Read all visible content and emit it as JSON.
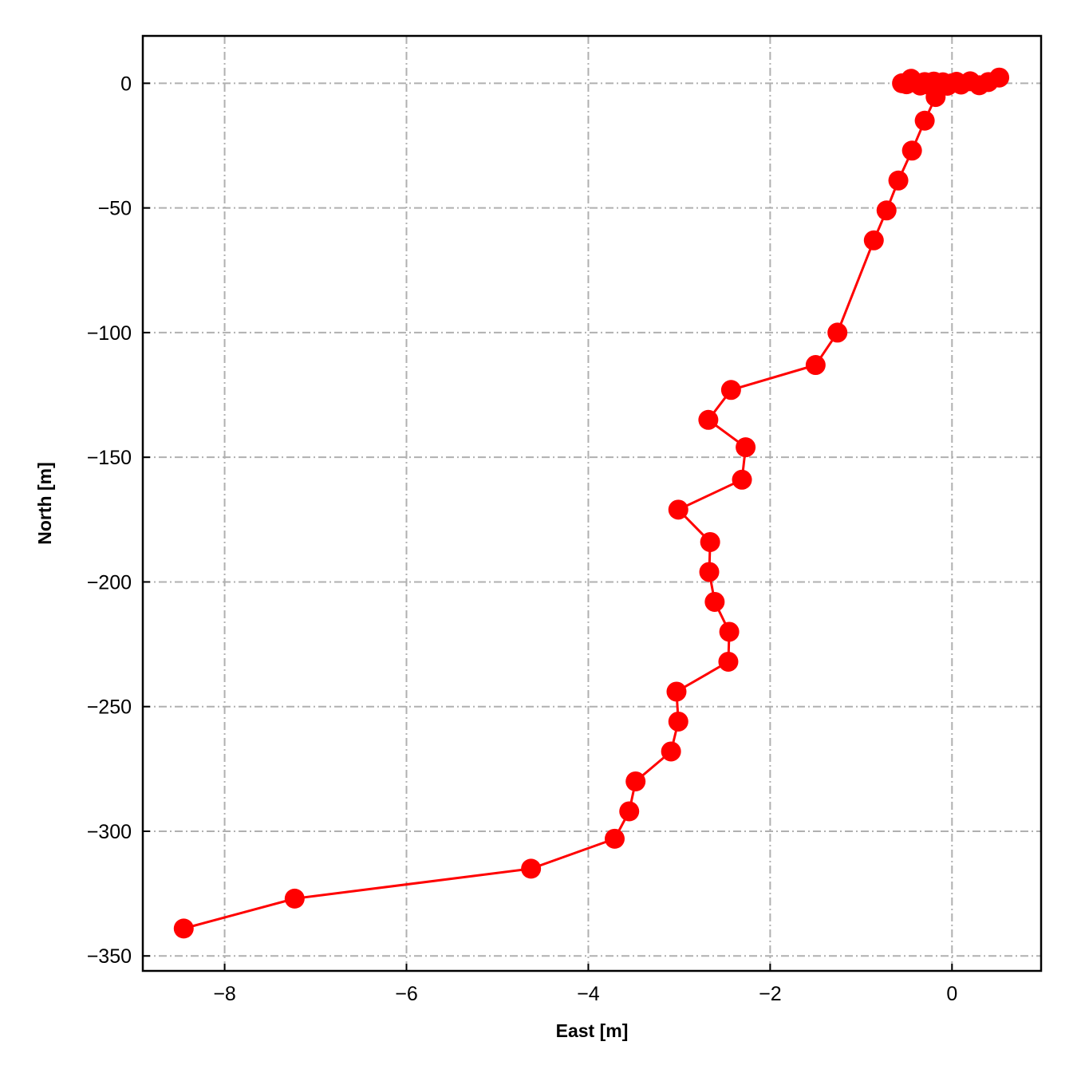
{
  "chart_data": {
    "type": "line",
    "xlabel": "East [m]",
    "ylabel": "North [m]",
    "xlim": [
      -8.9,
      0.98
    ],
    "ylim": [
      -356,
      19
    ],
    "xticks": [
      -8,
      -6,
      -4,
      -2,
      0
    ],
    "yticks": [
      0,
      -50,
      -100,
      -150,
      -200,
      -250,
      -300,
      -350
    ],
    "grid": true,
    "legend": "none",
    "series": [
      {
        "color": "#ff0000",
        "marker": "circle",
        "x": [
          0.52,
          0.4,
          0.3,
          0.2,
          0.1,
          0.05,
          0.0,
          -0.05,
          -0.1,
          -0.15,
          -0.2,
          -0.25,
          -0.3,
          -0.35,
          -0.4,
          -0.45,
          -0.5,
          -0.55,
          -0.18,
          -0.3,
          -0.44,
          -0.59,
          -0.72,
          -0.86,
          -1.26,
          -1.5,
          -2.43,
          -2.68,
          -2.27,
          -2.31,
          -3.01,
          -2.66,
          -2.67,
          -2.61,
          -2.45,
          -2.46,
          -3.03,
          -3.01,
          -3.09,
          -3.48,
          -3.55,
          -3.71,
          -4.63,
          -7.23,
          -8.45
        ],
        "y": [
          2.3,
          0.5,
          -0.8,
          0.8,
          -0.5,
          0.6,
          0.0,
          -1.0,
          0.4,
          -0.6,
          0.7,
          -0.3,
          0.5,
          -0.9,
          0.3,
          1.8,
          -0.4,
          0.0,
          -5.5,
          -15,
          -27,
          -39,
          -51,
          -63,
          -100,
          -113,
          -123,
          -135,
          -146,
          -159,
          -171,
          -184,
          -196,
          -208,
          -220,
          -232,
          -244,
          -256,
          -268,
          -280,
          -292,
          -303,
          -315,
          -327,
          -339
        ]
      }
    ]
  }
}
